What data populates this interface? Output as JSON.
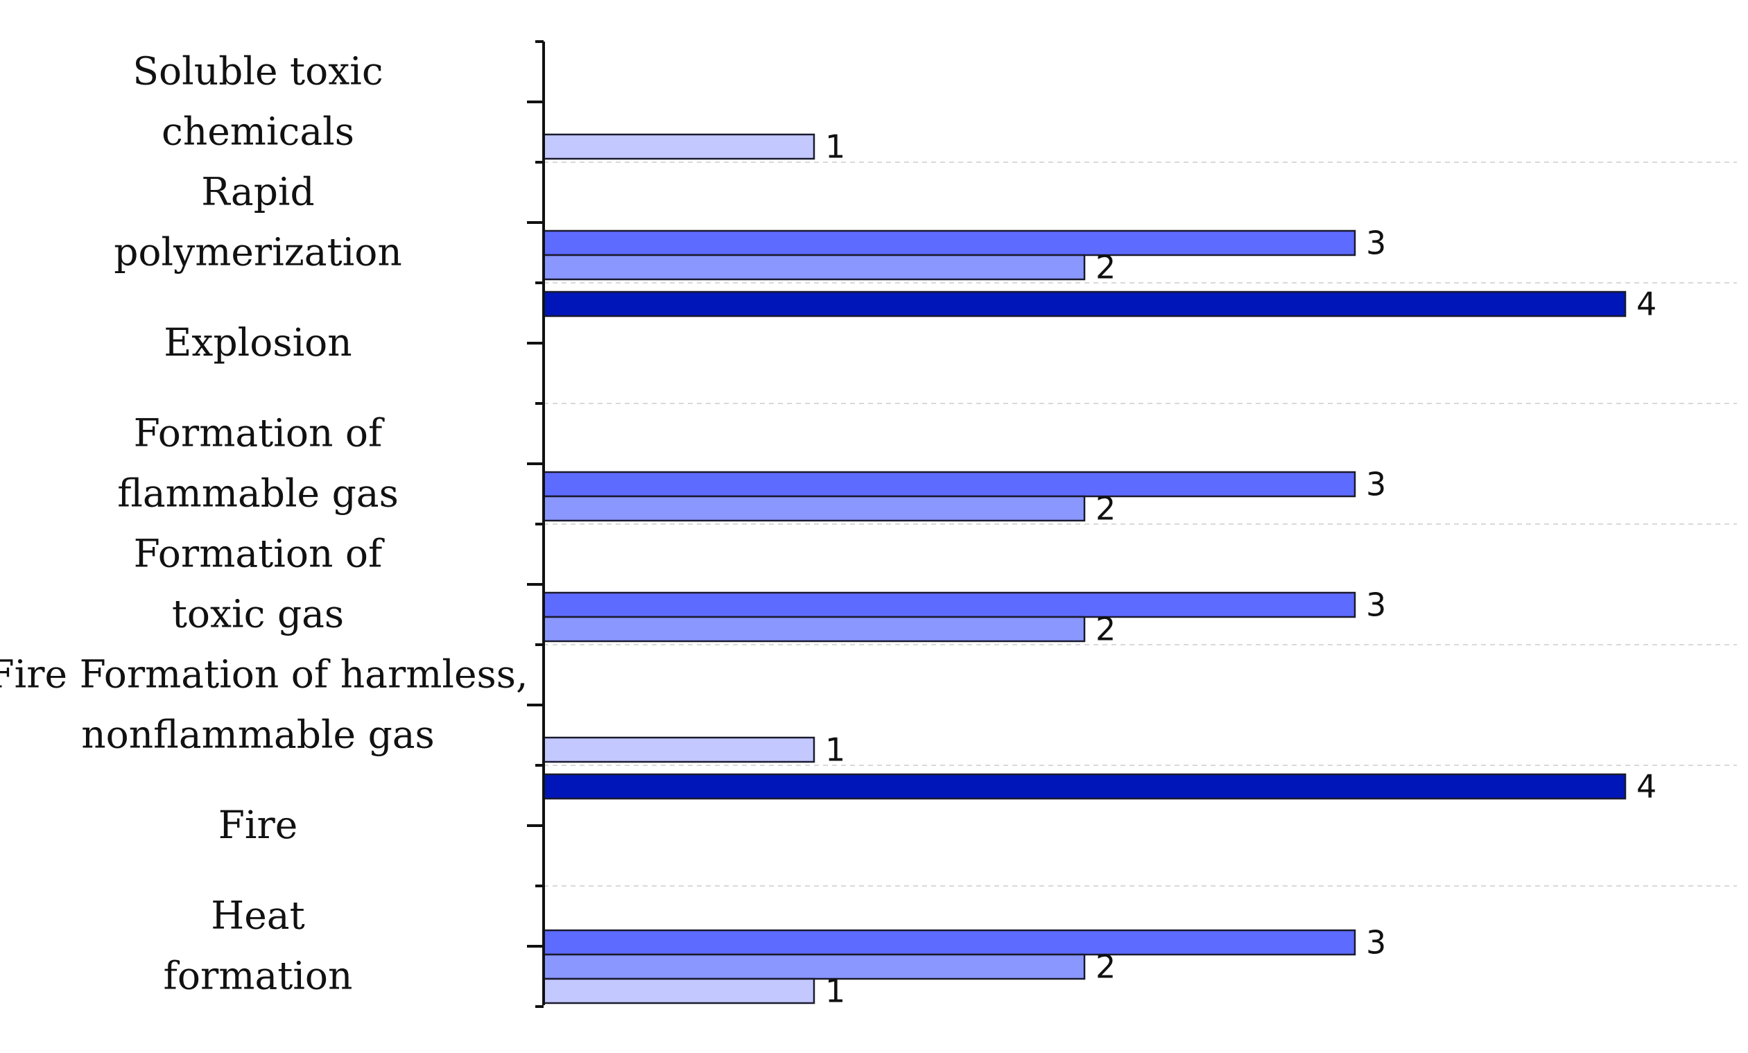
{
  "chart_data": {
    "type": "bar",
    "orientation": "horizontal",
    "xlim": [
      0,
      4
    ],
    "grid": "dashed horizontal separators between categories",
    "legend": "none",
    "level_colors": {
      "1": "#C3C8FF",
      "2": "#8A97FF",
      "3": "#5E6BFF",
      "4": "#0016B8"
    },
    "categories": [
      {
        "label_lines": [
          "Soluble toxic",
          "chemicals"
        ],
        "bars": [
          1
        ]
      },
      {
        "label_lines": [
          "Rapid",
          "polymerization"
        ],
        "bars": [
          3,
          2
        ]
      },
      {
        "label_lines": [
          "Explosion"
        ],
        "bars": [
          4
        ]
      },
      {
        "label_lines": [
          "Formation of",
          "flammable gas"
        ],
        "bars": [
          3,
          2
        ]
      },
      {
        "label_lines": [
          "Formation of",
          "toxic gas"
        ],
        "bars": [
          3,
          2
        ]
      },
      {
        "label_lines": [
          "Fire Formation of harmless,",
          "nonflammable gas"
        ],
        "bars": [
          1
        ]
      },
      {
        "label_lines": [
          "Fire"
        ],
        "bars": [
          4
        ]
      },
      {
        "label_lines": [
          "Heat",
          "formation"
        ],
        "bars": [
          3,
          2,
          1
        ]
      }
    ]
  }
}
